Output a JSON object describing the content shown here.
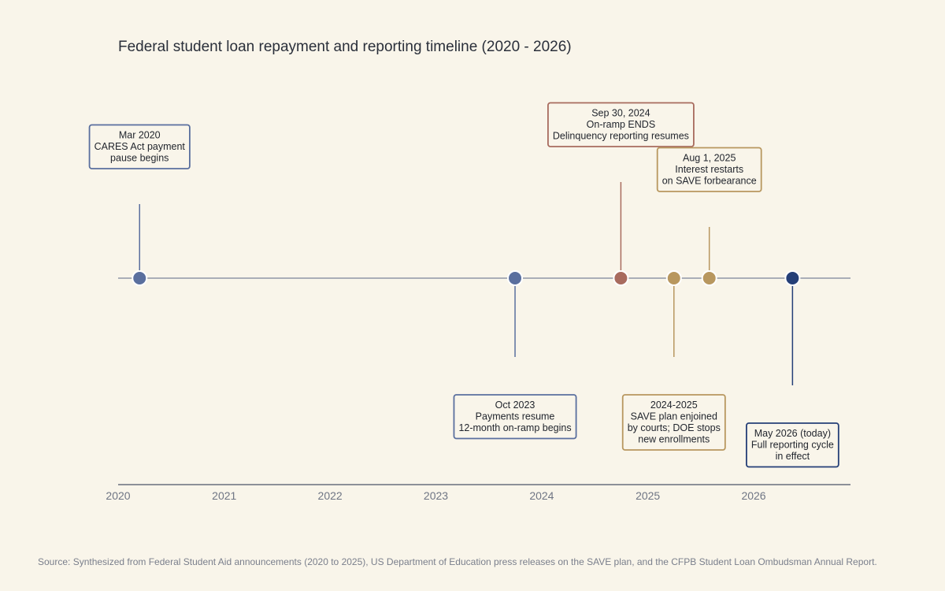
{
  "chart_data": {
    "type": "timeline",
    "title": "Federal student loan repayment and reporting timeline (2020 - 2026)",
    "source": "Source: Synthesized from Federal Student Aid announcements (2020 to 2025), US Department of Education press releases on the SAVE plan, and the CFPB Student Loan Ombudsman Annual Report.",
    "x_axis": {
      "type": "date",
      "range": [
        "2020-01-01",
        "2026-12-01"
      ],
      "ticks": [
        "2020",
        "2021",
        "2022",
        "2023",
        "2024",
        "2025",
        "2026"
      ]
    },
    "grid": false,
    "events": [
      {
        "date": "2020-03-15",
        "label_lines": [
          "Mar 2020",
          "CARES Act payment",
          "pause begins"
        ],
        "color": "#5a6f9e",
        "side": "above",
        "stem_length": "medium"
      },
      {
        "date": "2023-10-01",
        "label_lines": [
          "Oct 2023",
          "Payments resume",
          "12-month on-ramp begins"
        ],
        "color": "#5a6f9e",
        "side": "below",
        "stem_length": "medium"
      },
      {
        "date": "2024-09-30",
        "label_lines": [
          "Sep 30, 2024",
          "On-ramp ENDS",
          "Delinquency reporting resumes"
        ],
        "color": "#a86b5e",
        "side": "above",
        "stem_length": "long"
      },
      {
        "date": "2025-04-01",
        "label_lines": [
          "2024-2025",
          "SAVE plan enjoined",
          "by courts; DOE stops",
          "new enrollments"
        ],
        "color": "#b8975f",
        "side": "below",
        "stem_length": "medium"
      },
      {
        "date": "2025-08-01",
        "label_lines": [
          "Aug 1, 2025",
          "Interest restarts",
          "on SAVE forbearance"
        ],
        "color": "#b8975f",
        "side": "above",
        "stem_length": "short"
      },
      {
        "date": "2026-05-15",
        "label_lines": [
          "May 2026 (today)",
          "Full reporting cycle",
          "in effect"
        ],
        "color": "#253f77",
        "side": "below",
        "stem_length": "long"
      }
    ]
  }
}
